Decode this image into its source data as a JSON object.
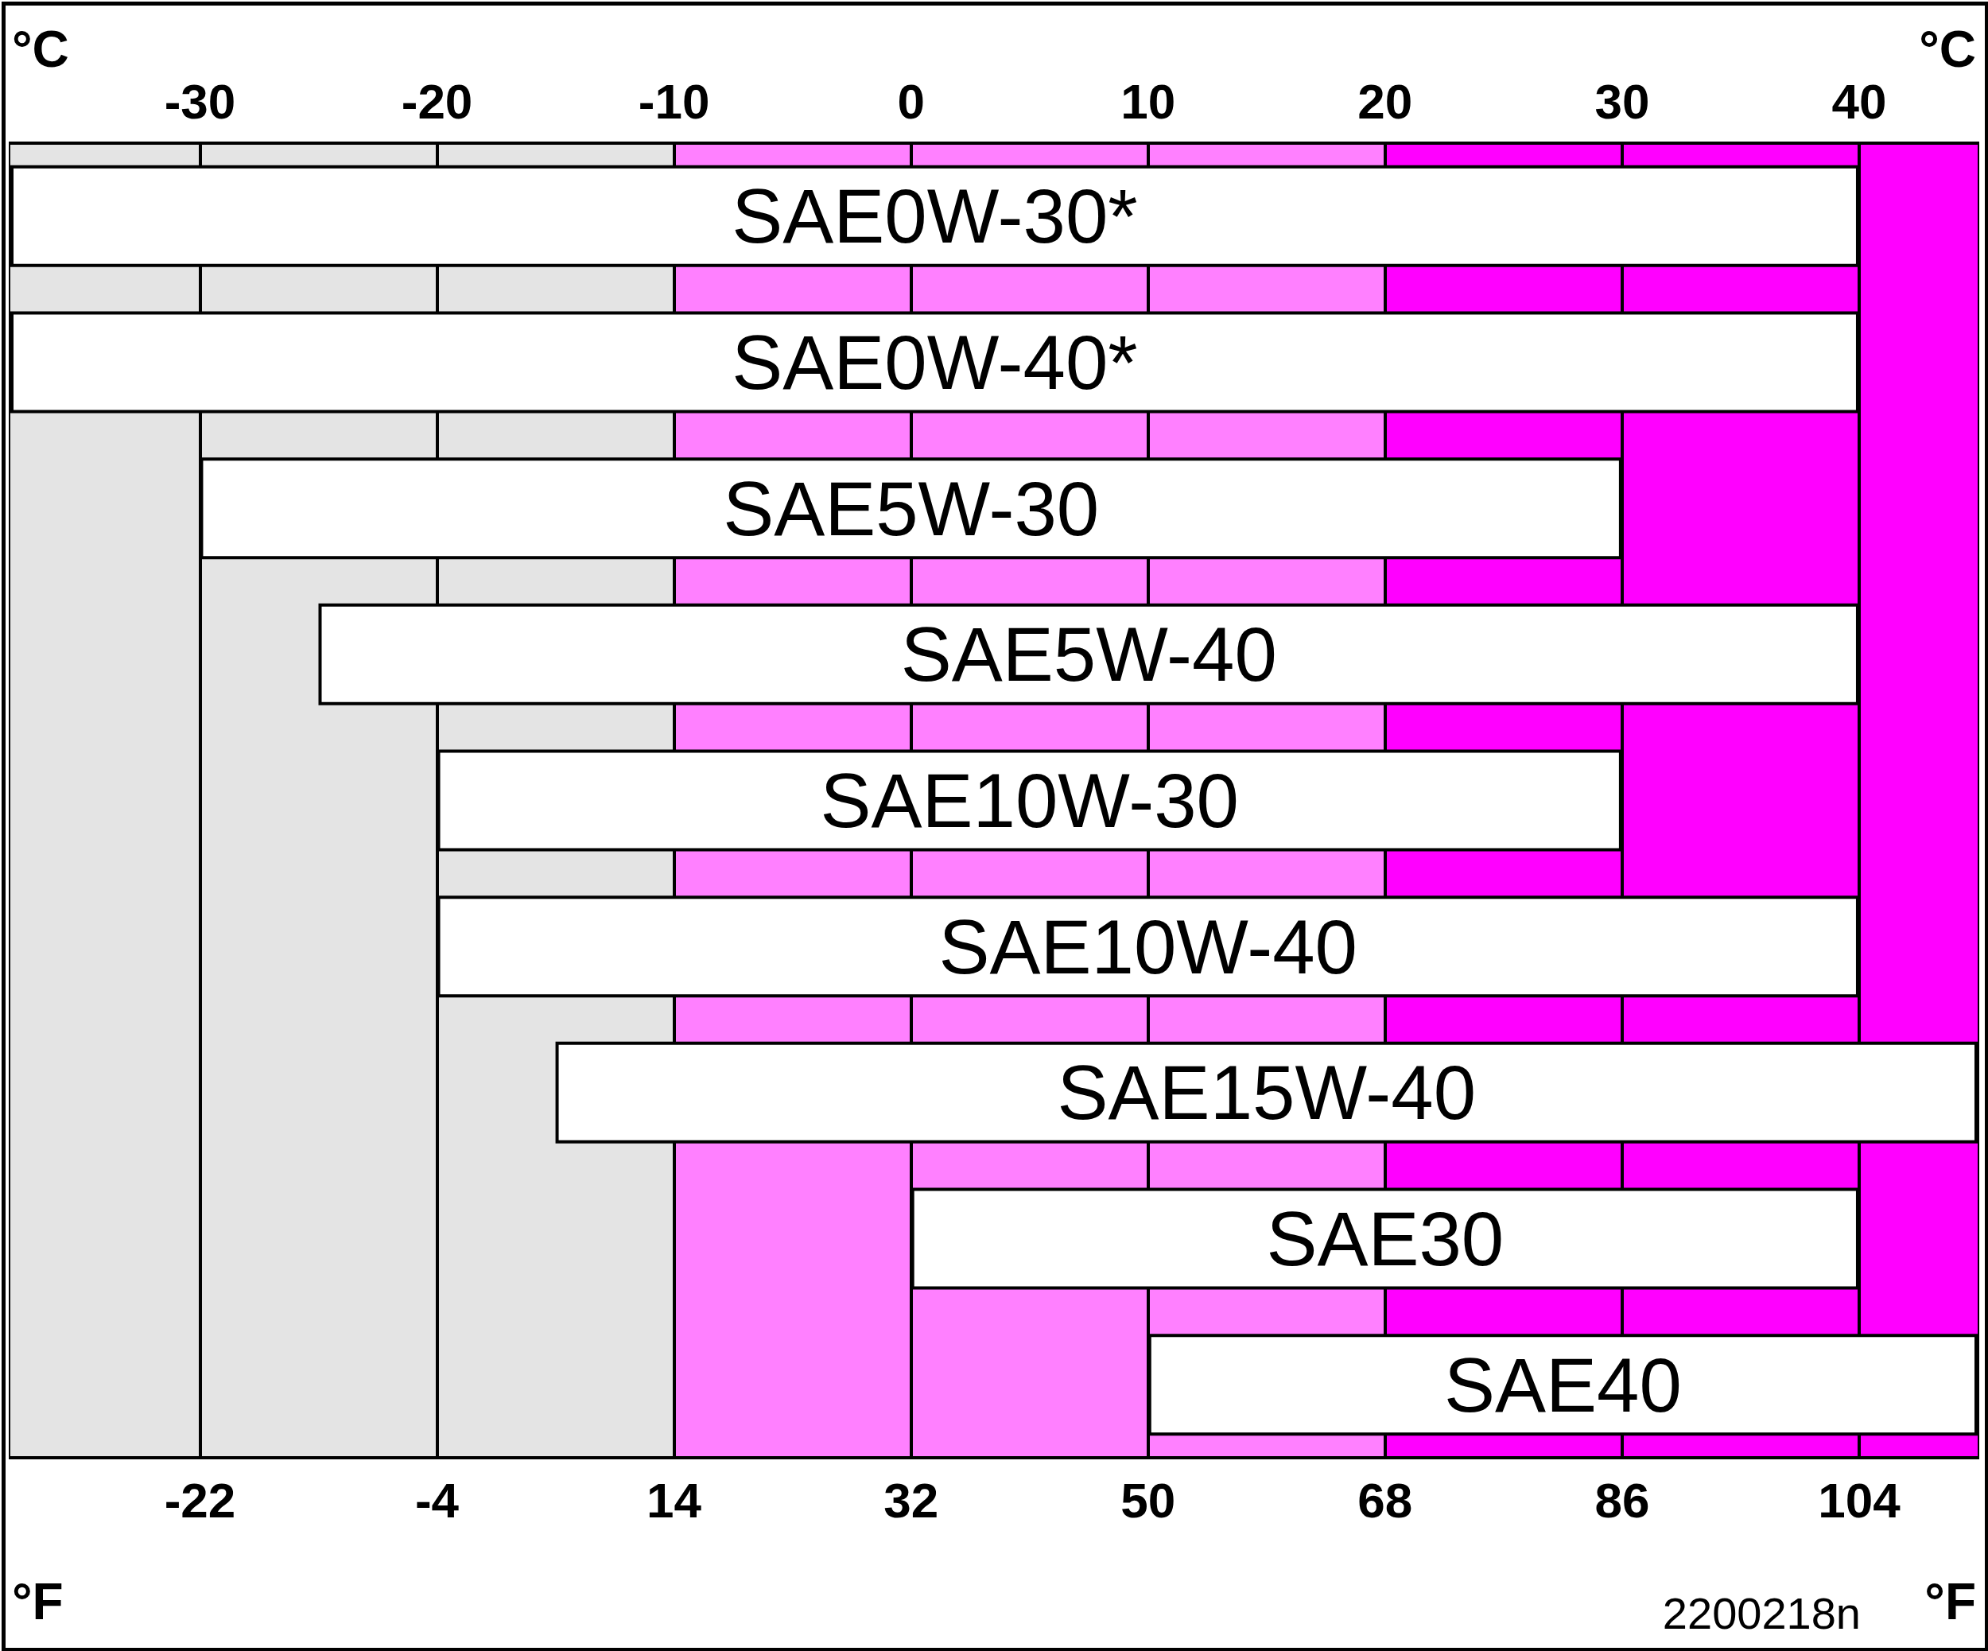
{
  "chart_data": {
    "type": "bar",
    "orientation": "horizontal",
    "xlabel": "°C",
    "x2label": "°F",
    "categories": [
      "SAE0W-30*",
      "SAE0W-40*",
      "SAE5W-30",
      "SAE5W-40",
      "SAE10W-30",
      "SAE10W-40",
      "SAE15W-40",
      "SAE30",
      "SAE40"
    ],
    "base": [
      -38,
      -38,
      -30,
      -25,
      -20,
      -20,
      -15,
      0,
      10
    ],
    "values": [
      78,
      78,
      60,
      65,
      50,
      60,
      60,
      40,
      35
    ],
    "color": "#ffffff",
    "xlim": [
      -38,
      45
    ],
    "xticks": [
      -30,
      -20,
      -10,
      0,
      10,
      20,
      30,
      40
    ],
    "x2lim": [
      -36.4,
      113
    ],
    "x2ticks": [
      -22,
      -4,
      14,
      32,
      50,
      68,
      86,
      104
    ],
    "bands": [
      {
        "axis": "x",
        "from": -38,
        "to": -10,
        "color": "#e4e4e4"
      },
      {
        "axis": "x",
        "from": -10,
        "to": 20,
        "color": "#ff80ff"
      },
      {
        "axis": "x",
        "from": 20,
        "to": 45,
        "color": "#ff00ff"
      }
    ],
    "grid": "x",
    "annotations": [
      "2200218n"
    ]
  }
}
